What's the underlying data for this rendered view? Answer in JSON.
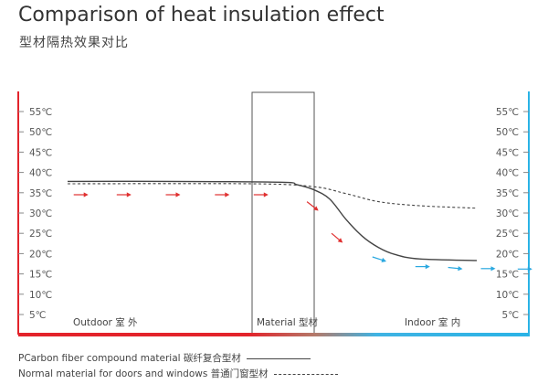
{
  "title": "Comparison of heat insulation effect",
  "subtitle": "型材隔热效果对比",
  "chart_data": {
    "type": "line",
    "y_ticks": [
      "55℃",
      "50℃",
      "45℃",
      "40℃",
      "35℃",
      "30℃",
      "25℃",
      "20℃",
      "15℃",
      "10℃",
      "5℃"
    ],
    "ylim": [
      0,
      57.5
    ],
    "zones": [
      "Outdoor 室 外",
      "Material 型材",
      "Indoor 室 内"
    ],
    "series": [
      {
        "name": "PCarbon fiber compound material 碳纤复合型材",
        "style": "solid",
        "color": "#444444",
        "values": [
          [
            0,
            37.8
          ],
          [
            0.25,
            37.8
          ],
          [
            0.52,
            37.6
          ],
          [
            0.56,
            37
          ],
          [
            0.6,
            35.8
          ],
          [
            0.64,
            33.5
          ],
          [
            0.68,
            28.5
          ],
          [
            0.72,
            24.3
          ],
          [
            0.76,
            21.5
          ],
          [
            0.8,
            19.8
          ],
          [
            0.86,
            18.7
          ],
          [
            1.0,
            18.3
          ]
        ]
      },
      {
        "name": "Normal material for doors and windows 普通门窗型材",
        "style": "dashed",
        "color": "#444444",
        "values": [
          [
            0,
            37.2
          ],
          [
            0.45,
            37.2
          ],
          [
            0.6,
            36.5
          ],
          [
            0.68,
            34.8
          ],
          [
            0.76,
            32.8
          ],
          [
            0.86,
            31.8
          ],
          [
            1.0,
            31.2
          ]
        ]
      }
    ],
    "heat_arrows": [
      {
        "t": 0.015,
        "v": 34.5,
        "color": "#e03030",
        "angle": 0
      },
      {
        "t": 0.12,
        "v": 34.5,
        "color": "#e03030",
        "angle": 0
      },
      {
        "t": 0.24,
        "v": 34.5,
        "color": "#e03030",
        "angle": 0
      },
      {
        "t": 0.36,
        "v": 34.5,
        "color": "#e03030",
        "angle": 0
      },
      {
        "t": 0.455,
        "v": 34.5,
        "color": "#e03030",
        "angle": 0
      },
      {
        "t": 0.585,
        "v": 32.8,
        "color": "#e03030",
        "angle": 38
      },
      {
        "t": 0.645,
        "v": 25,
        "color": "#e03030",
        "angle": 40
      },
      {
        "t": 0.745,
        "v": 19.2,
        "color": "#2aa8e0",
        "angle": 18
      },
      {
        "t": 0.85,
        "v": 16.8,
        "color": "#2aa8e0",
        "angle": 0
      },
      {
        "t": 0.93,
        "v": 16.6,
        "color": "#2aa8e0",
        "angle": 6
      },
      {
        "t": 1.01,
        "v": 16.3,
        "color": "#2aa8e0",
        "angle": 0
      },
      {
        "t": 1.1,
        "v": 16.2,
        "color": "#2aa8e0",
        "angle": 0
      }
    ]
  },
  "legend": {
    "carbon": "PCarbon fiber compound material 碳纤复合型材",
    "normal": "Normal material for doors and windows 普通门窗型材"
  }
}
